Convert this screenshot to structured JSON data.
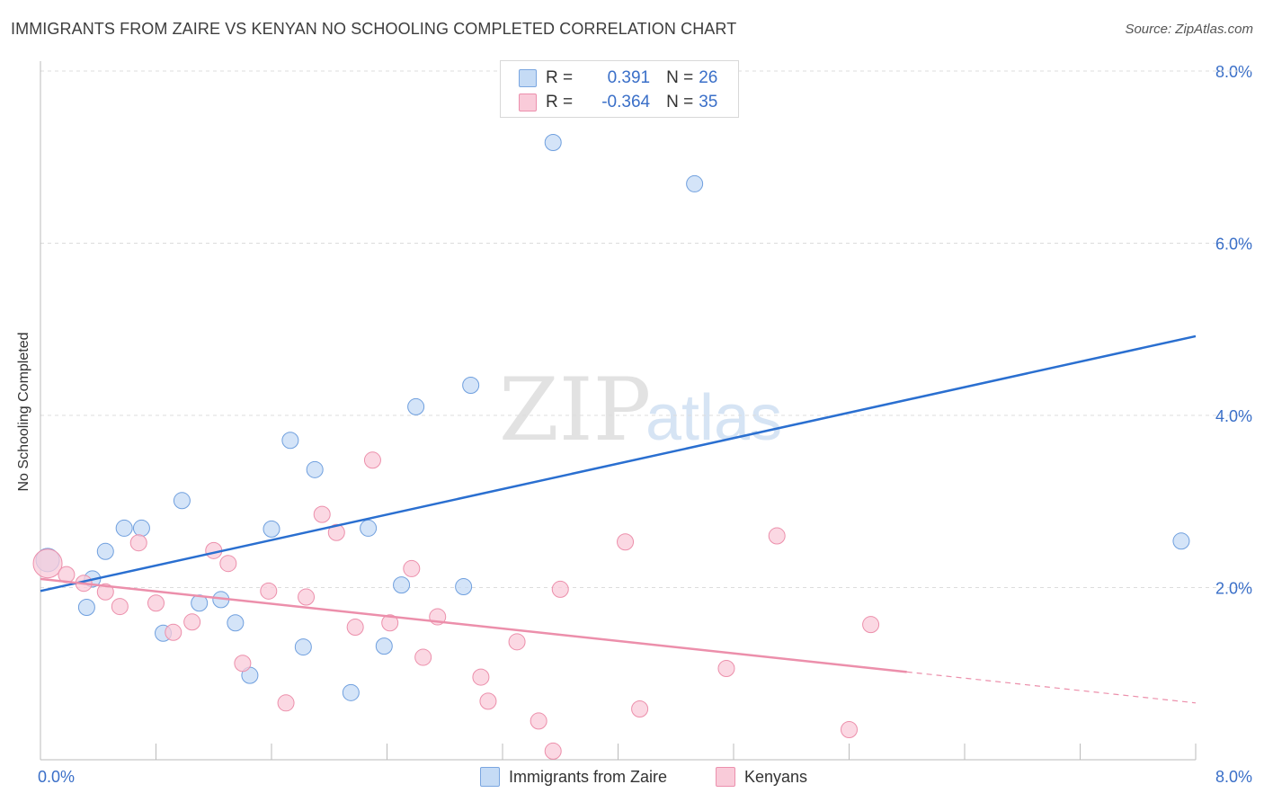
{
  "header": {
    "title": "IMMIGRANTS FROM ZAIRE VS KENYAN NO SCHOOLING COMPLETED CORRELATION CHART",
    "source": "Source: ZipAtlas.com"
  },
  "legend_top": {
    "rows": [
      {
        "r_label": "R =",
        "r_value": "0.391",
        "n_label": "N =",
        "n_value": "26",
        "color": "#aac8f0",
        "border": "#7aa6e0"
      },
      {
        "r_label": "R =",
        "r_value": "-0.364",
        "n_label": "N =",
        "n_value": "35",
        "color": "#f8c4d4",
        "border": "#ec90ad"
      }
    ]
  },
  "watermark": {
    "zip": "ZIP",
    "atlas": "atlas"
  },
  "chart_data": {
    "type": "scatter",
    "title": "IMMIGRANTS FROM ZAIRE VS KENYAN NO SCHOOLING COMPLETED CORRELATION CHART",
    "xlabel": "",
    "ylabel": "No Schooling Completed",
    "xlim": [
      0,
      8
    ],
    "ylim": [
      0,
      8
    ],
    "x_tick_labels": [
      "0.0%",
      "8.0%"
    ],
    "y_tick_labels": [
      "2.0%",
      "4.0%",
      "6.0%",
      "8.0%"
    ],
    "y_ticks": [
      2,
      4,
      6,
      8
    ],
    "grid": true,
    "legend_position": "bottom",
    "series": [
      {
        "name": "Immigrants from Zaire",
        "color": "#6f9fde",
        "fill": "#c5dbf5",
        "trend": {
          "x0": 0.0,
          "y0": 1.96,
          "x1": 8.0,
          "y1": 4.92,
          "dashed_from": null
        },
        "points": [
          [
            0.05,
            2.32,
            24
          ],
          [
            0.36,
            2.1,
            16
          ],
          [
            0.32,
            1.77,
            16
          ],
          [
            0.45,
            2.42,
            16
          ],
          [
            0.58,
            2.69,
            16
          ],
          [
            0.7,
            2.69,
            16
          ],
          [
            0.85,
            1.47,
            16
          ],
          [
            0.98,
            3.01,
            16
          ],
          [
            1.1,
            1.82,
            16
          ],
          [
            1.25,
            1.86,
            16
          ],
          [
            1.35,
            1.59,
            16
          ],
          [
            1.45,
            0.98,
            16
          ],
          [
            1.6,
            2.68,
            16
          ],
          [
            1.73,
            3.71,
            16
          ],
          [
            1.82,
            1.31,
            16
          ],
          [
            1.9,
            3.37,
            16
          ],
          [
            2.15,
            0.78,
            16
          ],
          [
            2.27,
            2.69,
            16
          ],
          [
            2.38,
            1.32,
            16
          ],
          [
            2.5,
            2.03,
            16
          ],
          [
            2.6,
            4.1,
            16
          ],
          [
            2.93,
            2.01,
            16
          ],
          [
            2.98,
            4.35,
            16
          ],
          [
            3.55,
            7.17,
            16
          ],
          [
            4.53,
            6.69,
            16
          ],
          [
            7.9,
            2.54,
            16
          ]
        ]
      },
      {
        "name": "Kenyans",
        "color": "#ec8fab",
        "fill": "#f9cbd9",
        "trend": {
          "x0": 0.0,
          "y0": 2.1,
          "x1": 8.0,
          "y1": 0.66,
          "dashed_from": 6.0
        },
        "points": [
          [
            0.05,
            2.28,
            30
          ],
          [
            0.18,
            2.15,
            16
          ],
          [
            0.3,
            2.05,
            16
          ],
          [
            0.45,
            1.95,
            16
          ],
          [
            0.55,
            1.78,
            16
          ],
          [
            0.68,
            2.52,
            16
          ],
          [
            0.8,
            1.82,
            16
          ],
          [
            0.92,
            1.48,
            16
          ],
          [
            1.05,
            1.6,
            16
          ],
          [
            1.2,
            2.43,
            16
          ],
          [
            1.3,
            2.28,
            16
          ],
          [
            1.4,
            1.12,
            16
          ],
          [
            1.58,
            1.96,
            16
          ],
          [
            1.7,
            0.66,
            16
          ],
          [
            1.84,
            1.89,
            16
          ],
          [
            1.95,
            2.85,
            16
          ],
          [
            2.05,
            2.64,
            16
          ],
          [
            2.18,
            1.54,
            16
          ],
          [
            2.3,
            3.48,
            16
          ],
          [
            2.42,
            1.59,
            16
          ],
          [
            2.57,
            2.22,
            16
          ],
          [
            2.65,
            1.19,
            16
          ],
          [
            2.75,
            1.66,
            16
          ],
          [
            3.05,
            0.96,
            16
          ],
          [
            3.1,
            0.68,
            16
          ],
          [
            3.3,
            1.37,
            16
          ],
          [
            3.45,
            0.45,
            16
          ],
          [
            3.55,
            0.1,
            16
          ],
          [
            3.6,
            1.98,
            16
          ],
          [
            4.05,
            2.53,
            16
          ],
          [
            4.15,
            0.59,
            16
          ],
          [
            4.75,
            1.06,
            16
          ],
          [
            5.1,
            2.6,
            16
          ],
          [
            5.6,
            0.35,
            16
          ],
          [
            5.75,
            1.57,
            16
          ]
        ]
      }
    ]
  }
}
